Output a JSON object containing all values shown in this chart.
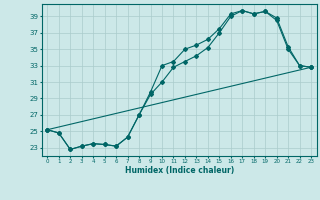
{
  "xlabel": "Humidex (Indice chaleur)",
  "bg_color": "#cce8e8",
  "grid_color": "#aacccc",
  "line_color": "#006666",
  "xlim": [
    -0.5,
    23.5
  ],
  "ylim": [
    22.0,
    40.5
  ],
  "yticks": [
    23,
    25,
    27,
    29,
    31,
    33,
    35,
    37,
    39
  ],
  "xticks": [
    0,
    1,
    2,
    3,
    4,
    5,
    6,
    7,
    8,
    9,
    10,
    11,
    12,
    13,
    14,
    15,
    16,
    17,
    18,
    19,
    20,
    21,
    22,
    23
  ],
  "line1_x": [
    0,
    1,
    2,
    3,
    4,
    5,
    6,
    7,
    8,
    9,
    10,
    11,
    12,
    13,
    14,
    15,
    16,
    17,
    18,
    19,
    20,
    21,
    22,
    23
  ],
  "line1_y": [
    25.2,
    24.8,
    22.8,
    23.2,
    23.5,
    23.4,
    23.2,
    24.3,
    27.0,
    29.8,
    33.0,
    33.5,
    35.0,
    35.5,
    36.2,
    37.5,
    39.3,
    39.7,
    39.3,
    39.6,
    38.8,
    35.3,
    33.0,
    32.8
  ],
  "line2_x": [
    0,
    1,
    2,
    3,
    4,
    5,
    6,
    7,
    8,
    9,
    10,
    11,
    12,
    13,
    14,
    15,
    16,
    17,
    18,
    19,
    20,
    21,
    22,
    23
  ],
  "line2_y": [
    25.2,
    24.8,
    22.8,
    23.2,
    23.5,
    23.4,
    23.2,
    24.3,
    27.0,
    29.5,
    31.0,
    32.8,
    33.5,
    34.2,
    35.2,
    37.0,
    39.0,
    39.7,
    39.3,
    39.6,
    38.5,
    35.0,
    33.0,
    32.8
  ],
  "line3_x": [
    0,
    23
  ],
  "line3_y": [
    25.2,
    32.8
  ]
}
